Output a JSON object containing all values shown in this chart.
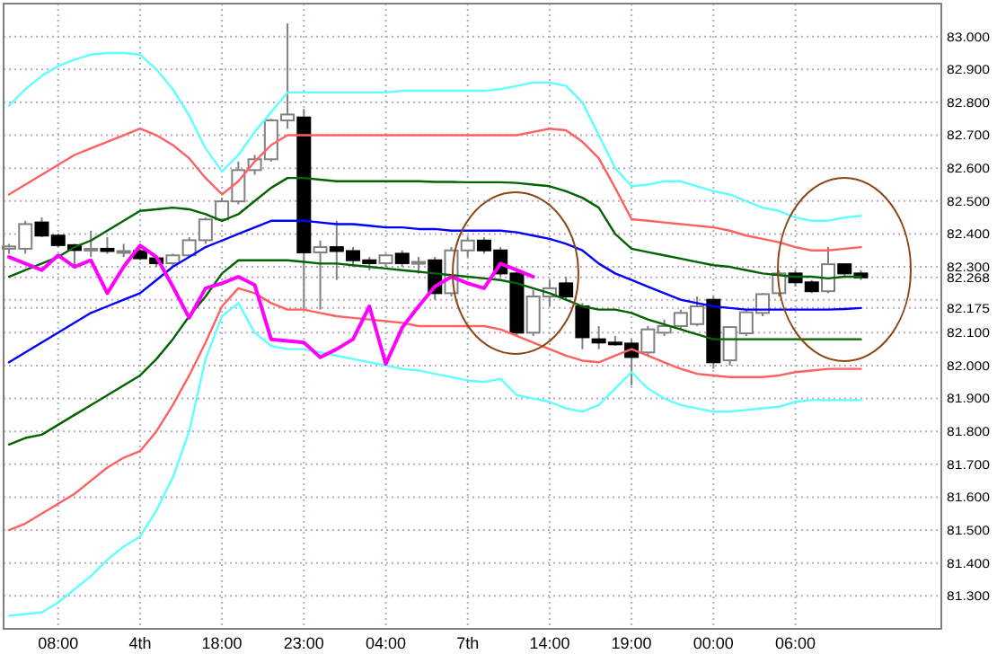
{
  "chart_data": {
    "type": "candlestick",
    "categories": [
      null,
      null,
      null,
      "08:00",
      null,
      null,
      null,
      null,
      "4th",
      null,
      null,
      null,
      null,
      "18:00",
      null,
      null,
      null,
      null,
      "23:00",
      null,
      null,
      null,
      null,
      "04:00",
      null,
      null,
      null,
      null,
      "7th",
      null,
      null,
      null,
      null,
      "14:00",
      null,
      null,
      null,
      null,
      "19:00",
      null,
      null,
      null,
      null,
      "00:00",
      null,
      null,
      null,
      null,
      "06:00",
      null,
      null,
      null,
      null
    ],
    "ohlc": [
      [
        82.355,
        82.37,
        82.34,
        82.362
      ],
      [
        82.355,
        82.44,
        82.34,
        82.43
      ],
      [
        82.435,
        82.45,
        82.39,
        82.395
      ],
      [
        82.395,
        82.4,
        82.36,
        82.366
      ],
      [
        82.366,
        82.37,
        82.3,
        82.351
      ],
      [
        82.351,
        82.41,
        82.33,
        82.355
      ],
      [
        82.355,
        82.39,
        82.34,
        82.348
      ],
      [
        82.348,
        82.37,
        82.33,
        82.348
      ],
      [
        82.348,
        82.36,
        82.32,
        82.326
      ],
      [
        82.326,
        82.33,
        82.3,
        82.311
      ],
      [
        82.311,
        82.34,
        82.3,
        82.335
      ],
      [
        82.335,
        82.39,
        82.33,
        82.381
      ],
      [
        82.381,
        82.45,
        82.37,
        82.444
      ],
      [
        82.444,
        82.51,
        82.44,
        82.499
      ],
      [
        82.499,
        82.62,
        82.49,
        82.594
      ],
      [
        82.594,
        82.64,
        82.58,
        82.627
      ],
      [
        82.627,
        82.75,
        82.62,
        82.745
      ],
      [
        82.745,
        83.04,
        82.72,
        82.763
      ],
      [
        82.754,
        82.78,
        82.17,
        82.344
      ],
      [
        82.344,
        82.38,
        82.17,
        82.36
      ],
      [
        82.36,
        82.44,
        82.26,
        82.348
      ],
      [
        82.348,
        82.36,
        82.3,
        82.32
      ],
      [
        82.32,
        82.33,
        82.29,
        82.311
      ],
      [
        82.311,
        82.34,
        82.3,
        82.335
      ],
      [
        82.34,
        82.35,
        82.3,
        82.311
      ],
      [
        82.311,
        82.33,
        82.28,
        82.315
      ],
      [
        82.32,
        82.33,
        82.2,
        82.22
      ],
      [
        82.22,
        82.36,
        82.21,
        82.35
      ],
      [
        82.35,
        82.39,
        82.33,
        82.38
      ],
      [
        82.38,
        82.39,
        82.34,
        82.35
      ],
      [
        82.35,
        82.36,
        82.27,
        82.28
      ],
      [
        82.28,
        82.29,
        82.09,
        82.1
      ],
      [
        82.1,
        82.23,
        82.09,
        82.21
      ],
      [
        82.21,
        82.26,
        82.18,
        82.235
      ],
      [
        82.25,
        82.27,
        82.2,
        82.21
      ],
      [
        82.18,
        82.19,
        82.05,
        82.086
      ],
      [
        82.08,
        82.12,
        82.05,
        82.07
      ],
      [
        82.07,
        82.09,
        82.06,
        82.067
      ],
      [
        82.067,
        82.08,
        81.94,
        82.026
      ],
      [
        82.04,
        82.12,
        82.03,
        82.11
      ],
      [
        82.1,
        82.14,
        82.09,
        82.12
      ],
      [
        82.12,
        82.17,
        82.11,
        82.16
      ],
      [
        82.126,
        82.21,
        82.12,
        82.18
      ],
      [
        82.2,
        82.21,
        81.99,
        82.01
      ],
      [
        82.016,
        82.12,
        82.0,
        82.117
      ],
      [
        82.098,
        82.17,
        82.09,
        82.162
      ],
      [
        82.16,
        82.22,
        82.15,
        82.217
      ],
      [
        82.22,
        82.29,
        82.21,
        82.28
      ],
      [
        82.28,
        82.29,
        82.24,
        82.253
      ],
      [
        82.253,
        82.26,
        82.22,
        82.226
      ],
      [
        82.226,
        82.36,
        82.22,
        82.308
      ],
      [
        82.308,
        82.31,
        82.27,
        82.28
      ],
      [
        82.28,
        82.29,
        82.26,
        82.268
      ]
    ],
    "series": [
      {
        "type": "line",
        "color": "#60ffff",
        "values": [
          82.79,
          82.84,
          82.88,
          82.91,
          82.93,
          82.945,
          82.95,
          82.95,
          82.945,
          82.9,
          82.84,
          82.76,
          82.66,
          82.59,
          82.64,
          82.71,
          82.77,
          82.83,
          82.83,
          82.83,
          82.83,
          82.83,
          82.83,
          82.83,
          82.835,
          82.835,
          82.835,
          82.835,
          82.835,
          82.835,
          82.84,
          82.85,
          82.86,
          82.86,
          82.85,
          82.8,
          82.7,
          82.6,
          82.545,
          82.55,
          82.56,
          82.56,
          82.545,
          82.53,
          82.52,
          82.5,
          82.48,
          82.47,
          82.45,
          82.44,
          82.44,
          82.45,
          82.455
        ]
      },
      {
        "type": "line",
        "color": "#ff6060",
        "values": [
          82.52,
          82.55,
          82.58,
          82.61,
          82.64,
          82.66,
          82.68,
          82.7,
          82.72,
          82.7,
          82.67,
          82.63,
          82.57,
          82.52,
          82.56,
          82.62,
          82.67,
          82.7,
          82.7,
          82.7,
          82.7,
          82.7,
          82.7,
          82.7,
          82.7,
          82.7,
          82.7,
          82.7,
          82.7,
          82.7,
          82.7,
          82.7,
          82.71,
          82.72,
          82.715,
          82.68,
          82.63,
          82.54,
          82.445,
          82.44,
          82.435,
          82.43,
          82.425,
          82.42,
          82.41,
          82.395,
          82.385,
          82.375,
          82.36,
          82.35,
          82.35,
          82.355,
          82.36
        ]
      },
      {
        "type": "line",
        "color": "#006400",
        "values": [
          82.27,
          82.29,
          82.31,
          82.33,
          82.36,
          82.38,
          82.41,
          82.44,
          82.47,
          82.475,
          82.48,
          82.475,
          82.46,
          82.44,
          82.46,
          82.5,
          82.54,
          82.57,
          82.57,
          82.565,
          82.56,
          82.56,
          82.56,
          82.56,
          82.56,
          82.56,
          82.558,
          82.558,
          82.557,
          82.557,
          82.557,
          82.555,
          82.55,
          82.545,
          82.53,
          82.51,
          82.48,
          82.4,
          82.355,
          82.345,
          82.335,
          82.325,
          82.315,
          82.305,
          82.3,
          82.29,
          82.28,
          82.275,
          82.27,
          82.27,
          82.265,
          82.27,
          82.27
        ]
      },
      {
        "type": "line",
        "color": "#0000ff",
        "values": [
          82.01,
          82.04,
          82.07,
          82.1,
          82.13,
          82.16,
          82.18,
          82.2,
          82.22,
          82.26,
          82.3,
          82.33,
          82.36,
          82.38,
          82.4,
          82.42,
          82.44,
          82.44,
          82.44,
          82.435,
          82.43,
          82.43,
          82.425,
          82.42,
          82.42,
          82.415,
          82.415,
          82.41,
          82.41,
          82.41,
          82.41,
          82.405,
          82.395,
          82.385,
          82.37,
          82.35,
          82.31,
          82.28,
          82.26,
          82.24,
          82.22,
          82.2,
          82.19,
          82.18,
          82.175,
          82.17,
          82.17,
          82.17,
          82.17,
          82.17,
          82.17,
          82.172,
          82.175
        ]
      },
      {
        "type": "line",
        "color": "#006400",
        "values": [
          81.76,
          81.78,
          81.79,
          81.82,
          81.85,
          81.88,
          81.91,
          81.94,
          81.97,
          82.02,
          82.08,
          82.15,
          82.21,
          82.28,
          82.32,
          82.32,
          82.32,
          82.32,
          82.315,
          82.31,
          82.31,
          82.305,
          82.3,
          82.295,
          82.29,
          82.285,
          82.28,
          82.275,
          82.27,
          82.265,
          82.26,
          82.25,
          82.235,
          82.22,
          82.2,
          82.18,
          82.17,
          82.17,
          82.16,
          82.14,
          82.125,
          82.11,
          82.095,
          82.08,
          82.08,
          82.08,
          82.08,
          82.08,
          82.08,
          82.08,
          82.08,
          82.08,
          82.08
        ]
      },
      {
        "type": "line",
        "color": "#ff6060",
        "values": [
          81.5,
          81.52,
          81.55,
          81.58,
          81.61,
          81.65,
          81.69,
          81.72,
          81.74,
          81.8,
          81.88,
          81.97,
          82.07,
          82.18,
          82.235,
          82.22,
          82.19,
          82.17,
          82.17,
          82.16,
          82.15,
          82.145,
          82.14,
          82.135,
          82.13,
          82.12,
          82.12,
          82.12,
          82.12,
          82.12,
          82.11,
          82.09,
          82.07,
          82.05,
          82.03,
          82.015,
          82.01,
          82.03,
          82.05,
          82.03,
          82.01,
          81.99,
          81.975,
          81.97,
          81.965,
          81.965,
          81.965,
          81.97,
          81.98,
          81.985,
          81.99,
          81.99,
          81.99
        ]
      },
      {
        "type": "line",
        "color": "#60ffff",
        "values": [
          81.24,
          81.245,
          81.25,
          81.28,
          81.32,
          81.36,
          81.41,
          81.45,
          81.48,
          81.56,
          81.66,
          81.8,
          82.02,
          82.15,
          82.19,
          82.1,
          82.06,
          82.05,
          82.05,
          82.04,
          82.03,
          82.02,
          82.01,
          82.0,
          81.99,
          81.985,
          81.975,
          81.965,
          81.955,
          81.95,
          81.96,
          81.91,
          81.9,
          81.89,
          81.87,
          81.86,
          81.88,
          81.93,
          81.98,
          81.93,
          81.9,
          81.88,
          81.87,
          81.86,
          81.86,
          81.865,
          81.87,
          81.875,
          81.89,
          81.895,
          81.895,
          81.895,
          81.895
        ]
      },
      {
        "type": "line",
        "color": "#ff00ff",
        "values": [
          82.33,
          82.31,
          82.29,
          82.335,
          82.3,
          82.32,
          82.22,
          82.3,
          82.365,
          82.33,
          82.24,
          82.145,
          82.235,
          82.25,
          82.27,
          82.245,
          82.08,
          82.075,
          82.07,
          82.025,
          82.05,
          82.08,
          82.18,
          82.005,
          82.115,
          82.18,
          82.24,
          82.27,
          82.25,
          82.235,
          82.31,
          82.29,
          82.27,
          null,
          null,
          null,
          null,
          null,
          null,
          null,
          null,
          null,
          null,
          null,
          null,
          null,
          null,
          null,
          null,
          null,
          null,
          null,
          null
        ]
      }
    ],
    "ylim": [
      81.2,
      83.1
    ],
    "yticks": [
      {
        "value": 81.3,
        "label": "81.300"
      },
      {
        "value": 81.4,
        "label": "81.400"
      },
      {
        "value": 81.5,
        "label": "81.500"
      },
      {
        "value": 81.6,
        "label": "81.600"
      },
      {
        "value": 81.7,
        "label": "81.700"
      },
      {
        "value": 81.8,
        "label": "81.800"
      },
      {
        "value": 81.9,
        "label": "81.900"
      },
      {
        "value": 82.0,
        "label": "82.000"
      },
      {
        "value": 82.1,
        "label": "82.100"
      },
      {
        "value": 82.175,
        "label": "82.175"
      },
      {
        "value": 82.2,
        "label": null
      },
      {
        "value": 82.268,
        "label": "82.268"
      },
      {
        "value": 82.3,
        "label": "82.300"
      },
      {
        "value": 82.4,
        "label": "82.400"
      },
      {
        "value": 82.5,
        "label": "82.500"
      },
      {
        "value": 82.6,
        "label": "82.600"
      },
      {
        "value": 82.7,
        "label": "82.700"
      },
      {
        "value": 82.8,
        "label": "82.800"
      },
      {
        "value": 82.9,
        "label": "82.900"
      },
      {
        "value": 83.0,
        "label": "83.000"
      }
    ],
    "grid": true
  }
}
